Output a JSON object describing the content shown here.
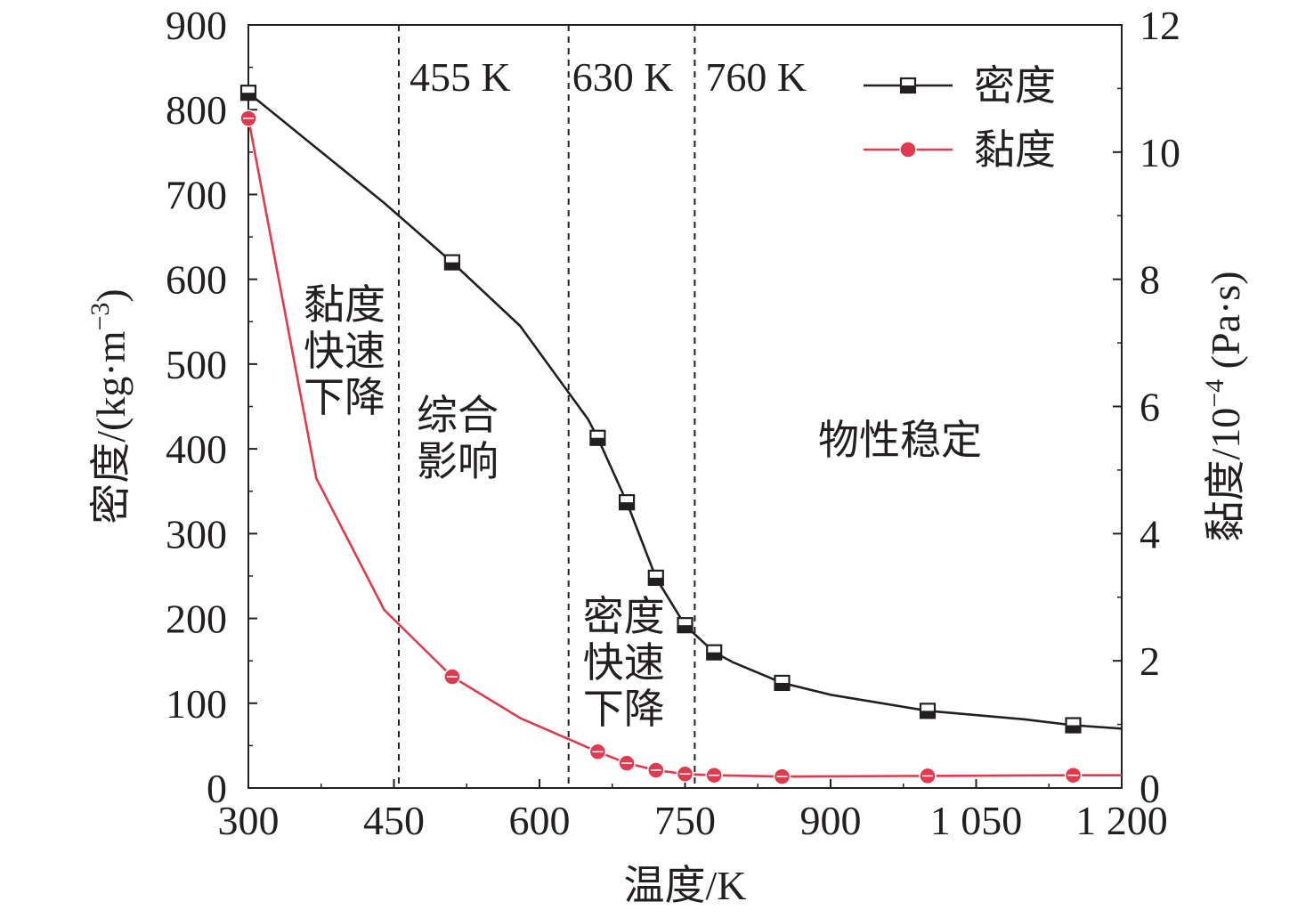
{
  "chart_data": {
    "type": "line",
    "xlabel": "温度/K",
    "ylabel_left": "密度/(kg·m",
    "ylabel_left_sup": "−3",
    "ylabel_left_tail": ")",
    "ylabel_right_prefix": "黏度/10",
    "ylabel_right_sup": "−4",
    "ylabel_right_tail": " (Pa·s)",
    "xlim": [
      300,
      1200
    ],
    "ylim_left": [
      0,
      900
    ],
    "ylim_right": [
      0,
      12
    ],
    "x_ticks": [
      {
        "value": 300,
        "label": "300"
      },
      {
        "value": 450,
        "label": "450"
      },
      {
        "value": 600,
        "label": "600"
      },
      {
        "value": 750,
        "label": "750"
      },
      {
        "value": 900,
        "label": "900"
      },
      {
        "value": 1050,
        "label": "1 050"
      },
      {
        "value": 1200,
        "label": "1 200"
      }
    ],
    "y_left_ticks": [
      0,
      100,
      200,
      300,
      400,
      500,
      600,
      700,
      800,
      900
    ],
    "y_right_ticks": [
      0,
      2,
      4,
      6,
      8,
      10,
      12
    ],
    "grid": false,
    "legend_position": "top-right",
    "series": [
      {
        "name": "密度",
        "axis": "left",
        "color": "#231f20",
        "marker": "square",
        "x": [
          300,
          370,
          440,
          510,
          580,
          650,
          660,
          690,
          720,
          750,
          780,
          800,
          850,
          900,
          1000,
          1100,
          1150,
          1200
        ],
        "y": [
          820,
          755,
          690,
          620,
          545,
          435,
          413,
          337,
          248,
          192,
          160,
          148,
          124,
          110,
          91,
          81,
          74,
          70
        ],
        "marker_x": [
          300,
          510,
          660,
          690,
          720,
          750,
          780,
          850,
          1000,
          1150
        ]
      },
      {
        "name": "黏度",
        "axis": "right",
        "color": "#e03a4e",
        "marker": "circle",
        "x": [
          300,
          370,
          440,
          510,
          580,
          660,
          690,
          720,
          750,
          780,
          850,
          1000,
          1150,
          1200
        ],
        "y": [
          10.53,
          4.87,
          2.8,
          1.75,
          1.1,
          0.57,
          0.39,
          0.28,
          0.22,
          0.2,
          0.18,
          0.19,
          0.2,
          0.2
        ],
        "marker_x": [
          300,
          510,
          660,
          690,
          720,
          750,
          780,
          850,
          1000,
          1150
        ]
      }
    ],
    "vlines": [
      {
        "x": 455,
        "label": "455 K"
      },
      {
        "x": 630,
        "label": "630 K"
      },
      {
        "x": 760,
        "label": "760 K"
      }
    ],
    "annotations": [
      {
        "id": "viscosity-drop",
        "lines": [
          "黏度",
          "快速",
          "下降"
        ]
      },
      {
        "id": "combined",
        "lines": [
          "综合",
          "影响"
        ]
      },
      {
        "id": "density-drop",
        "lines": [
          "密度",
          "快速",
          "下降"
        ]
      },
      {
        "id": "stable",
        "lines": [
          "物性稳定"
        ]
      }
    ]
  }
}
